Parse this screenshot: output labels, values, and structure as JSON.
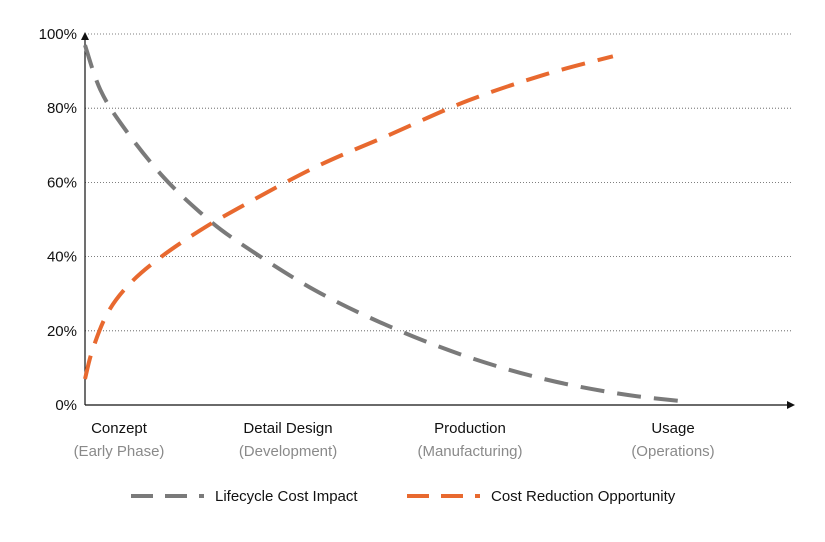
{
  "chart_data": {
    "type": "line",
    "title": "",
    "xlabel": "",
    "ylabel": "",
    "ylim": [
      0,
      100
    ],
    "y_ticks": [
      "0%",
      "20%",
      "40%",
      "60%",
      "80%",
      "100%"
    ],
    "y_tick_values": [
      0,
      20,
      40,
      60,
      80,
      100
    ],
    "grid": "horizontal dotted",
    "categories": [
      {
        "label": "Conzept",
        "sublabel": "(Early Phase)"
      },
      {
        "label": "Detail Design",
        "sublabel": "(Development)"
      },
      {
        "label": "Production",
        "sublabel": "(Manufacturing)"
      },
      {
        "label": "Usage",
        "sublabel": "(Operations)"
      }
    ],
    "x_range": [
      0,
      4
    ],
    "series": [
      {
        "name": "Lifecycle Cost Impact",
        "color": "#7a7a7a",
        "style": "dashed",
        "x": [
          0,
          0.1,
          0.25,
          0.5,
          0.75,
          1.0,
          1.5,
          2.0,
          2.5,
          3.0,
          3.5,
          3.91
        ],
        "y": [
          97,
          85,
          75,
          62,
          52,
          44,
          31,
          21,
          13,
          7,
          3,
          1
        ]
      },
      {
        "name": "Cost Reduction Opportunity",
        "color": "#e8692f",
        "style": "dashed",
        "x": [
          0,
          0.05,
          0.15,
          0.3,
          0.5,
          0.75,
          1.0,
          1.5,
          2.0,
          2.5,
          3.0,
          3.45
        ],
        "y": [
          7,
          15,
          25,
          33,
          40,
          47,
          53,
          64,
          73,
          82,
          89,
          94
        ]
      }
    ],
    "legend": "bottom-center"
  }
}
